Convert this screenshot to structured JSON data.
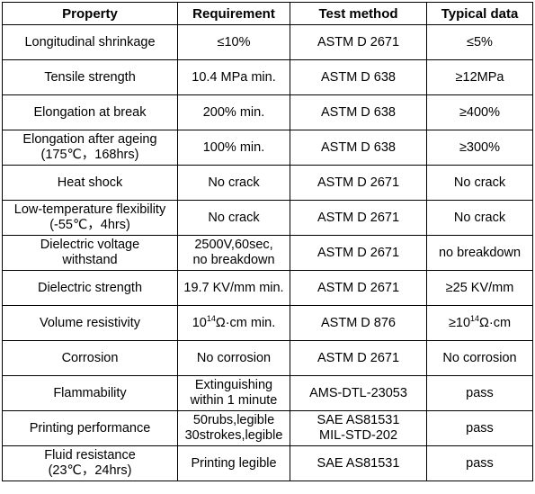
{
  "table": {
    "headers": [
      "Property",
      "Requirement",
      "Test method",
      "Typical data"
    ],
    "rows": [
      {
        "property": "Longitudinal shrinkage",
        "requirement": "≤10%",
        "test_method": "ASTM D 2671",
        "typical": "≤5%"
      },
      {
        "property": "Tensile strength",
        "requirement": "10.4 MPa min.",
        "test_method": "ASTM D 638",
        "typical": "≥12MPa"
      },
      {
        "property": "Elongation at break",
        "requirement": "200% min.",
        "test_method": "ASTM D 638",
        "typical": "≥400%"
      },
      {
        "property": "Elongation after ageing\n(175℃，168hrs)",
        "requirement": "100% min.",
        "test_method": "ASTM D 638",
        "typical": "≥300%"
      },
      {
        "property": "Heat shock",
        "requirement": "No crack",
        "test_method": "ASTM D 2671",
        "typical": "No crack"
      },
      {
        "property": "Low-temperature flexibility\n(-55℃，4hrs)",
        "requirement": "No crack",
        "test_method": "ASTM D 2671",
        "typical": "No crack"
      },
      {
        "property": "Dielectric voltage\nwithstand",
        "requirement": "2500V,60sec,\nno breakdown",
        "test_method": "ASTM D 2671",
        "typical": "no breakdown"
      },
      {
        "property": "Dielectric strength",
        "requirement": "19.7 KV/mm min.",
        "test_method": "ASTM D 2671",
        "typical": "≥25 KV/mm"
      },
      {
        "property": "Volume resistivity",
        "requirement": {
          "pre": "10",
          "sup": "14",
          "post": "Ω·cm min."
        },
        "test_method": "ASTM D 876",
        "typical": {
          "pre": "≥10",
          "sup": "14",
          "post": "Ω·cm"
        }
      },
      {
        "property": "Corrosion",
        "requirement": "No corrosion",
        "test_method": "ASTM D 2671",
        "typical": "No corrosion"
      },
      {
        "property": "Flammability",
        "requirement": "Extinguishing\nwithin 1 minute",
        "test_method": "AMS-DTL-23053",
        "typical": "pass"
      },
      {
        "property": "Printing performance",
        "requirement": "50rubs,legible\n30strokes,legible",
        "test_method": "SAE AS81531\nMIL-STD-202",
        "typical": "pass"
      },
      {
        "property": "Fluid resistance\n(23℃，24hrs)",
        "requirement": "Printing legible",
        "test_method": "SAE AS81531",
        "typical": "pass"
      }
    ]
  }
}
